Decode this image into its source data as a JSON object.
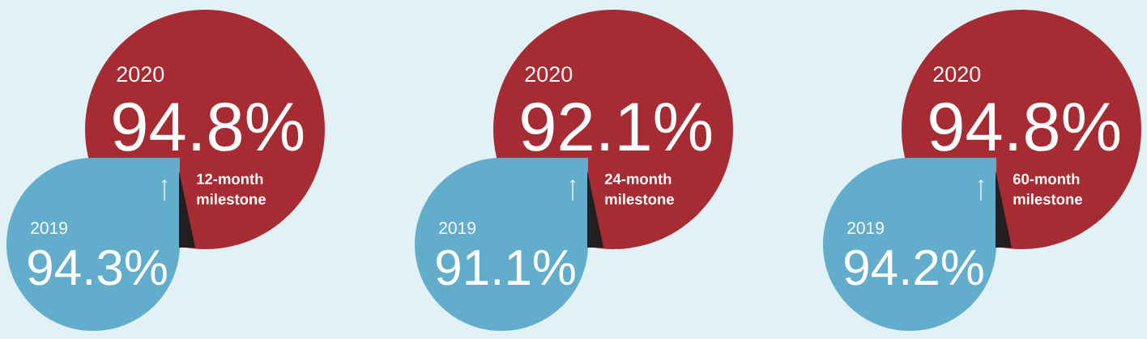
{
  "chart_data": [
    {
      "type": "other",
      "title": "12-month milestone",
      "categories": [
        "2020",
        "2019"
      ],
      "values": [
        94.8,
        94.3
      ],
      "value_labels": [
        "94.8%",
        "94.3%"
      ],
      "colors": [
        "#a72b32",
        "#63adcc"
      ]
    },
    {
      "type": "other",
      "title": "24-month milestone",
      "categories": [
        "2020",
        "2019"
      ],
      "values": [
        92.1,
        91.1
      ],
      "value_labels": [
        "92.1%",
        "91.1%"
      ],
      "colors": [
        "#a72b32",
        "#63adcc"
      ]
    },
    {
      "type": "other",
      "title": "60-month milestone",
      "categories": [
        "2020",
        "2019"
      ],
      "values": [
        94.8,
        94.2
      ],
      "value_labels": [
        "94.8%",
        "94.2%"
      ],
      "colors": [
        "#a72b32",
        "#63adcc"
      ]
    }
  ]
}
